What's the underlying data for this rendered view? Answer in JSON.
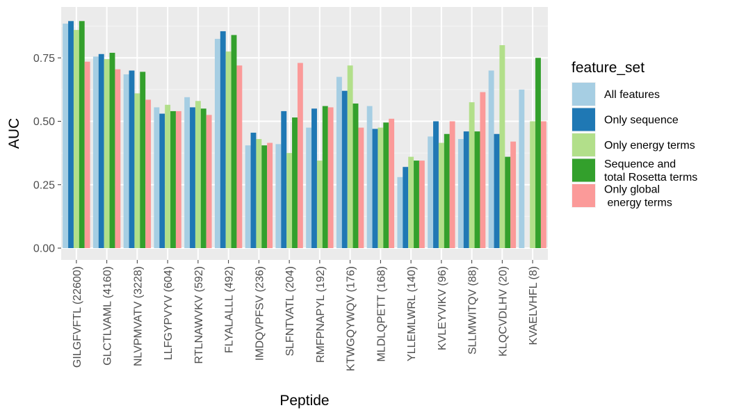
{
  "chart_data": {
    "type": "bar",
    "xlabel": "Peptide",
    "ylabel": "AUC",
    "ylim": [
      0,
      0.92
    ],
    "yticks": [
      0.0,
      0.25,
      0.5,
      0.75
    ],
    "ytick_labels": [
      "0.00",
      "0.25",
      "0.50",
      "0.75"
    ],
    "legend_title": "feature_set",
    "legend_position": "right",
    "grid": true,
    "categories": [
      "GILGFVFTL (22600)",
      "GLCTLVAML (4160)",
      "NLVPMVATV (3228)",
      "LLFGYPVYV (604)",
      "RTLNAWVKV (592)",
      "FLYALALLL (492)",
      "IMDQVPFSV (236)",
      "SLFNTVATL (204)",
      "RMFPNAPYL (192)",
      "KTWGQYWQV (176)",
      "MLDLQPETT (168)",
      "YLLEMLWRL (140)",
      "KVLEYVIKV (96)",
      "SLLMWITQV (88)",
      "KLQCVDLHV (20)",
      "KVAELVHFL (8)"
    ],
    "series": [
      {
        "name": "All features",
        "color": "#a6cee3",
        "legend_lines": [
          "All features"
        ],
        "values": [
          0.885,
          0.755,
          0.685,
          0.555,
          0.595,
          0.825,
          0.405,
          0.41,
          0.475,
          0.675,
          0.56,
          0.28,
          0.44,
          0.43,
          0.7,
          0.625
        ]
      },
      {
        "name": "Only sequence",
        "color": "#1f78b4",
        "legend_lines": [
          "Only sequence"
        ],
        "values": [
          0.895,
          0.765,
          0.7,
          0.53,
          0.555,
          0.855,
          0.455,
          0.54,
          0.55,
          0.62,
          0.47,
          0.32,
          0.5,
          0.46,
          0.45,
          0.0
        ]
      },
      {
        "name": "Only energy terms",
        "color": "#b2df8a",
        "legend_lines": [
          "Only energy terms"
        ],
        "values": [
          0.86,
          0.745,
          0.61,
          0.565,
          0.58,
          0.775,
          0.43,
          0.375,
          0.345,
          0.72,
          0.475,
          0.36,
          0.415,
          0.575,
          0.8,
          0.5
        ]
      },
      {
        "name": "Sequence and total Rosetta terms",
        "color": "#33a02c",
        "legend_lines": [
          "Sequence and",
          "total Rosetta terms"
        ],
        "values": [
          0.895,
          0.77,
          0.695,
          0.54,
          0.55,
          0.84,
          0.405,
          0.515,
          0.56,
          0.57,
          0.495,
          0.345,
          0.45,
          0.46,
          0.36,
          0.75
        ]
      },
      {
        "name": "Only global energy terms",
        "color": "#fb9a99",
        "legend_lines": [
          "Only global",
          " energy terms"
        ],
        "values": [
          0.735,
          0.705,
          0.585,
          0.54,
          0.525,
          0.72,
          0.415,
          0.73,
          0.555,
          0.475,
          0.51,
          0.345,
          0.5,
          0.615,
          0.42,
          0.5
        ]
      }
    ]
  }
}
